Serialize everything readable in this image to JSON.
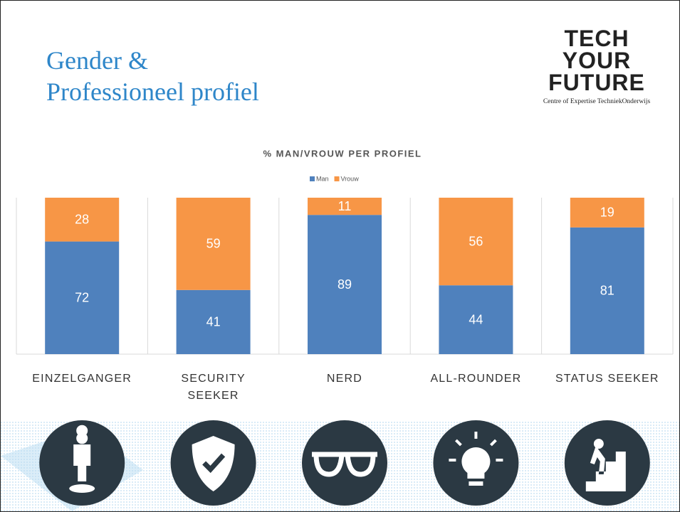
{
  "slide": {
    "title": [
      "Gender &",
      "Professioneel profiel"
    ],
    "logo": {
      "lines": [
        "TECH",
        "YOUR",
        "FUTURE"
      ],
      "tagline": "Centre of Expertise TechniekOnderwijs"
    }
  },
  "chart_data": {
    "type": "stacked_bar",
    "title": "% MAN/VROUW PER PROFIEL",
    "categories": [
      "EINZELGANGER",
      "SECURITY SEEKER",
      "NERD",
      "ALL-ROUNDER",
      "STATUS SEEKER"
    ],
    "series": [
      {
        "name": "Man",
        "color": "#4f81bd",
        "values": [
          72,
          41,
          89,
          44,
          81
        ]
      },
      {
        "name": "Vrouw",
        "color": "#f79646",
        "values": [
          28,
          59,
          11,
          56,
          19
        ]
      }
    ],
    "ylim": [
      0,
      100
    ],
    "legend": "top"
  }
}
